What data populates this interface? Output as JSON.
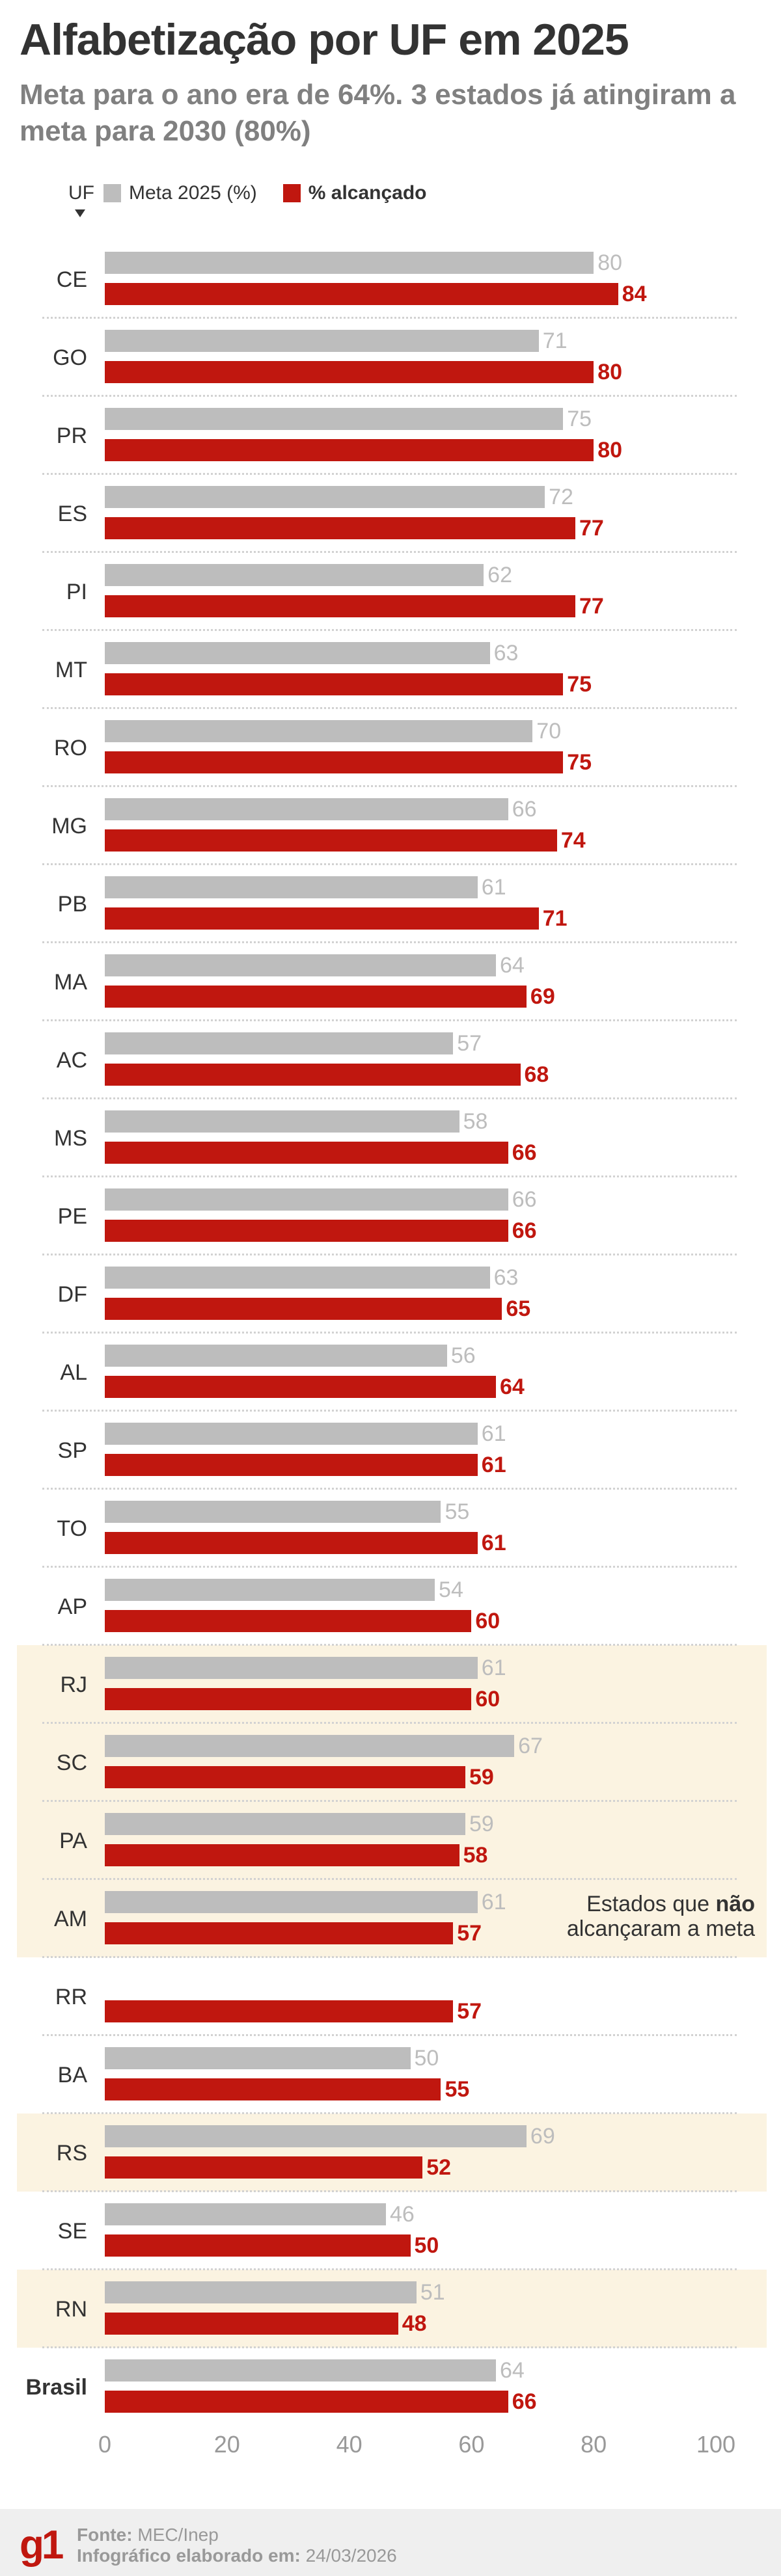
{
  "header": {
    "title": "Alfabetização por UF em 2025",
    "subtitle": "Meta para o ano era de 64%. 3 estados já atingiram a meta para 2030 (80%)"
  },
  "legend": {
    "uf_label": "UF",
    "meta_label": "Meta 2025 (%)",
    "alcancado_label": "% alcançado"
  },
  "colors": {
    "meta": "#bdbdbd",
    "alcancado": "#c0170f",
    "highlight": "#fbf3e1",
    "meta_text": "#bdbdbd"
  },
  "annotation": {
    "line1_pre": "Estados que ",
    "line1_bold": "não",
    "line2": "alcançaram a meta"
  },
  "chart_data": {
    "type": "bar",
    "orientation": "horizontal",
    "title": "Alfabetização por UF em 2025",
    "xlim": [
      0,
      100
    ],
    "x_ticks": [
      "0",
      "20",
      "40",
      "60",
      "80",
      "100"
    ],
    "series_names": [
      "Meta 2025 (%)",
      "% alcançado"
    ],
    "rows": [
      {
        "uf": "CE",
        "meta": 80,
        "alcancado": 84,
        "missed": false
      },
      {
        "uf": "GO",
        "meta": 71,
        "alcancado": 80,
        "missed": false
      },
      {
        "uf": "PR",
        "meta": 75,
        "alcancado": 80,
        "missed": false
      },
      {
        "uf": "ES",
        "meta": 72,
        "alcancado": 77,
        "missed": false
      },
      {
        "uf": "PI",
        "meta": 62,
        "alcancado": 77,
        "missed": false
      },
      {
        "uf": "MT",
        "meta": 63,
        "alcancado": 75,
        "missed": false
      },
      {
        "uf": "RO",
        "meta": 70,
        "alcancado": 75,
        "missed": false
      },
      {
        "uf": "MG",
        "meta": 66,
        "alcancado": 74,
        "missed": false
      },
      {
        "uf": "PB",
        "meta": 61,
        "alcancado": 71,
        "missed": false
      },
      {
        "uf": "MA",
        "meta": 64,
        "alcancado": 69,
        "missed": false
      },
      {
        "uf": "AC",
        "meta": 57,
        "alcancado": 68,
        "missed": false
      },
      {
        "uf": "MS",
        "meta": 58,
        "alcancado": 66,
        "missed": false
      },
      {
        "uf": "PE",
        "meta": 66,
        "alcancado": 66,
        "missed": false
      },
      {
        "uf": "DF",
        "meta": 63,
        "alcancado": 65,
        "missed": false
      },
      {
        "uf": "AL",
        "meta": 56,
        "alcancado": 64,
        "missed": false
      },
      {
        "uf": "SP",
        "meta": 61,
        "alcancado": 61,
        "missed": false
      },
      {
        "uf": "TO",
        "meta": 55,
        "alcancado": 61,
        "missed": false
      },
      {
        "uf": "AP",
        "meta": 54,
        "alcancado": 60,
        "missed": false
      },
      {
        "uf": "RJ",
        "meta": 61,
        "alcancado": 60,
        "missed": true
      },
      {
        "uf": "SC",
        "meta": 67,
        "alcancado": 59,
        "missed": true
      },
      {
        "uf": "PA",
        "meta": 59,
        "alcancado": 58,
        "missed": true
      },
      {
        "uf": "AM",
        "meta": 61,
        "alcancado": 57,
        "missed": true
      },
      {
        "uf": "RR",
        "meta": null,
        "alcancado": 57,
        "missed": false
      },
      {
        "uf": "BA",
        "meta": 50,
        "alcancado": 55,
        "missed": false
      },
      {
        "uf": "RS",
        "meta": 69,
        "alcancado": 52,
        "missed": true
      },
      {
        "uf": "SE",
        "meta": 46,
        "alcancado": 50,
        "missed": false
      },
      {
        "uf": "RN",
        "meta": 51,
        "alcancado": 48,
        "missed": true
      },
      {
        "uf": "Brasil",
        "meta": 64,
        "alcancado": 66,
        "missed": false,
        "bold": true
      }
    ]
  },
  "footer": {
    "logo": "g1",
    "source_label": "Fonte:",
    "source": "MEC/Inep",
    "date_label": "Infográfico elaborado em:",
    "date": "24/03/2026"
  }
}
